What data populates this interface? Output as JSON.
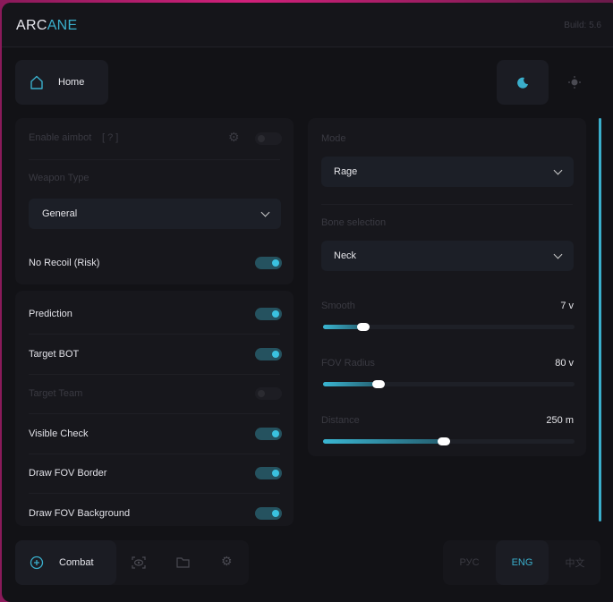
{
  "header": {
    "logo_a": "ARC",
    "logo_b": "ANE",
    "build": "Build: 5.6"
  },
  "nav": {
    "home": "Home",
    "theme_dark_icon": "moon-icon",
    "theme_light_icon": "sun-icon"
  },
  "left_panel": {
    "enable_aimbot": "Enable aimbot",
    "help": "[ ? ]",
    "enable_aimbot_on": false,
    "weapon_type_label": "Weapon Type",
    "weapon_type": "General",
    "no_recoil": "No Recoil (Risk)",
    "no_recoil_on": true
  },
  "toggles": [
    {
      "label": "Prediction",
      "on": true
    },
    {
      "label": "Target BOT",
      "on": true
    },
    {
      "label": "Target Team",
      "on": false
    },
    {
      "label": "Visible Check",
      "on": true
    },
    {
      "label": "Draw FOV Border",
      "on": true
    },
    {
      "label": "Draw FOV Background",
      "on": true
    }
  ],
  "right_panel": {
    "mode_label": "Mode",
    "mode": "Rage",
    "bone_label": "Bone selection",
    "bone": "Neck",
    "sliders": [
      {
        "label": "Smooth",
        "value": "7 v",
        "fill_pct": 16
      },
      {
        "label": "FOV Radius",
        "value": "80 v",
        "fill_pct": 22
      },
      {
        "label": "Distance",
        "value": "250 m",
        "fill_pct": 48
      }
    ]
  },
  "bottom_nav": {
    "combat": "Combat",
    "tabs": [
      "visuals",
      "files",
      "settings"
    ]
  },
  "languages": [
    "РУС",
    "ENG",
    "中文"
  ],
  "active_language": "ENG",
  "colors": {
    "accent": "#3aaecb",
    "bg": "#121216"
  }
}
